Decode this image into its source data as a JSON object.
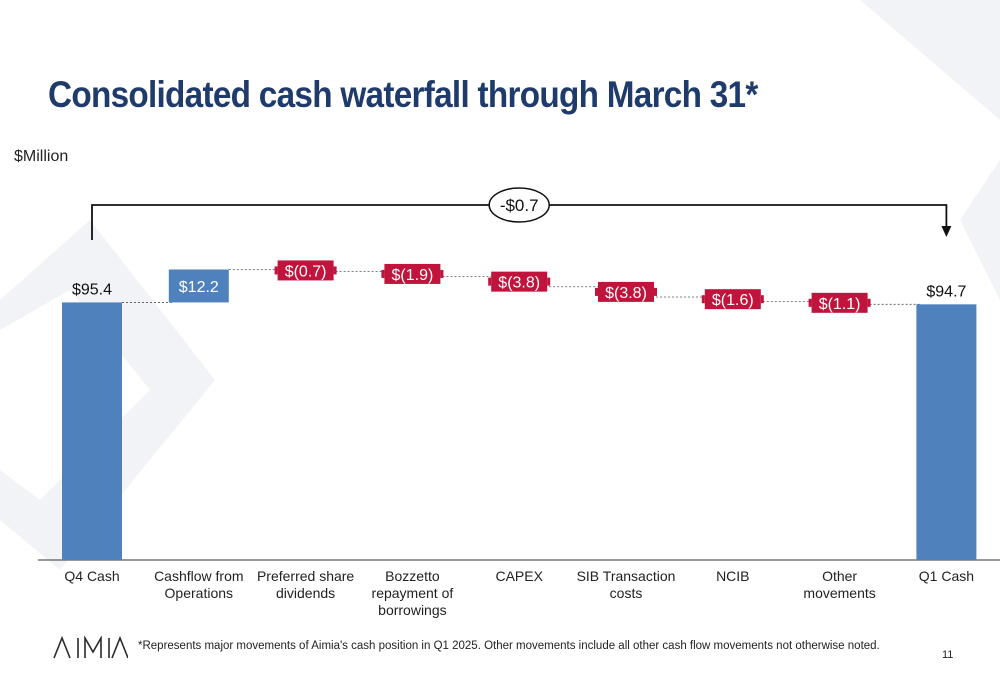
{
  "title": "Consolidated cash waterfall through March 31*",
  "unit_label": "$Million",
  "footnote": "*Represents major movements of Aimia's cash position in Q1 2025.  Other movements include all other cash flow movements not otherwise noted.",
  "page_number": "11",
  "logo_text": "AIMIA",
  "colors": {
    "title": "#1f3b6b",
    "total_bar": "#4f81bd",
    "increase": "#4f81bd",
    "decrease": "#c0143c"
  },
  "chart_data": {
    "type": "bar",
    "subtype": "waterfall",
    "categories": [
      "Q4 Cash",
      "Cashflow from Operations",
      "Preferred share dividends",
      "Bozzetto repayment of borrowings",
      "CAPEX",
      "SIB Transaction costs",
      "NCIB",
      "Other movements",
      "Q1 Cash"
    ],
    "tick_labels": [
      [
        "Q4 Cash"
      ],
      [
        "Cashflow from",
        "Operations"
      ],
      [
        "Preferred share",
        "dividends"
      ],
      [
        "Bozzetto",
        "repayment of",
        "borrowings"
      ],
      [
        "CAPEX"
      ],
      [
        "SIB Transaction",
        "costs"
      ],
      [
        "NCIB"
      ],
      [
        "Other",
        "movements"
      ],
      [
        "Q1 Cash"
      ]
    ],
    "values": [
      95.4,
      12.2,
      -0.7,
      -1.9,
      -3.8,
      -3.8,
      -1.6,
      -1.1,
      94.7
    ],
    "kinds": [
      "total",
      "delta",
      "delta",
      "delta",
      "delta",
      "delta",
      "delta",
      "delta",
      "total"
    ],
    "data_labels": [
      "$95.4",
      "$12.2",
      "$(0.7)",
      "$(1.9)",
      "$(3.8)",
      "$(3.8)",
      "$(1.6)",
      "$(1.1)",
      "$94.7"
    ],
    "net_change_label": "-$0.7",
    "ylim": [
      0,
      115
    ],
    "grid": false,
    "legend": "none"
  }
}
